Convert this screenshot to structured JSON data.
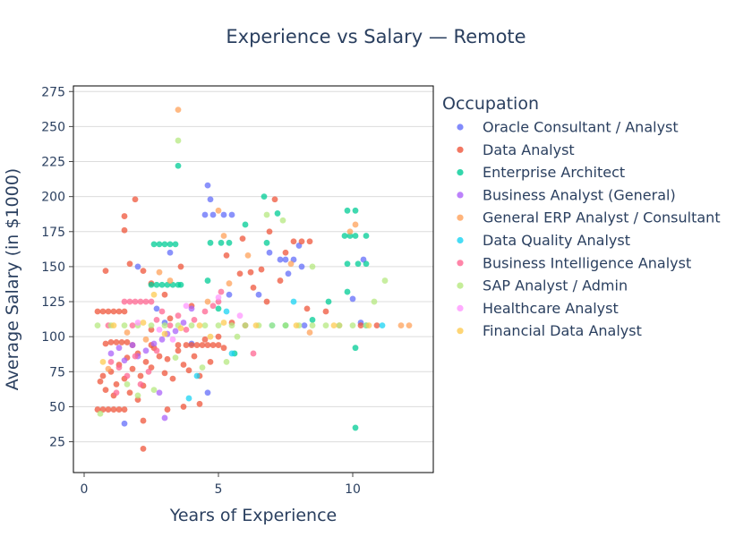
{
  "chart_data": {
    "type": "scatter",
    "title": "Experience vs Salary — Remote",
    "xlabel": "Years of Experience",
    "ylabel": "Average Salary (in $1000)",
    "xlim": [
      -0.4,
      13.0
    ],
    "ylim": [
      3,
      279
    ],
    "xticks": [
      0,
      5,
      10
    ],
    "yticks": [
      25,
      50,
      75,
      100,
      125,
      150,
      175,
      200,
      225,
      250,
      275
    ],
    "grid": "horizontal",
    "legend": {
      "title": "Occupation",
      "placement": "right"
    },
    "series": [
      {
        "name": "Oracle Consultant / Analyst",
        "color": "#636efa",
        "points": [
          [
            4.6,
            208
          ],
          [
            4.5,
            187
          ],
          [
            4.8,
            187
          ],
          [
            5.2,
            187
          ],
          [
            5.5,
            187
          ],
          [
            4.7,
            198
          ],
          [
            7.3,
            155
          ],
          [
            7.5,
            155
          ],
          [
            7.8,
            155
          ],
          [
            8.1,
            150
          ],
          [
            8.0,
            165
          ],
          [
            7.6,
            145
          ],
          [
            6.5,
            130
          ],
          [
            5.4,
            130
          ],
          [
            10.4,
            155
          ],
          [
            10.0,
            127
          ],
          [
            10.3,
            110
          ],
          [
            2.0,
            150
          ],
          [
            2.7,
            120
          ],
          [
            3.0,
            110
          ],
          [
            1.5,
            38
          ],
          [
            4.0,
            95
          ],
          [
            3.2,
            160
          ],
          [
            6.9,
            160
          ],
          [
            4.6,
            60
          ],
          [
            8.2,
            108
          ]
        ]
      },
      {
        "name": "Data Analyst",
        "color": "#ef553b",
        "points": [
          [
            0.5,
            118
          ],
          [
            0.7,
            118
          ],
          [
            0.9,
            118
          ],
          [
            1.1,
            118
          ],
          [
            1.3,
            118
          ],
          [
            1.5,
            118
          ],
          [
            0.5,
            48
          ],
          [
            0.7,
            48
          ],
          [
            0.9,
            48
          ],
          [
            1.1,
            48
          ],
          [
            1.3,
            48
          ],
          [
            1.5,
            48
          ],
          [
            1.0,
            96
          ],
          [
            1.2,
            96
          ],
          [
            1.4,
            96
          ],
          [
            1.6,
            96
          ],
          [
            0.8,
            95
          ],
          [
            1.8,
            94
          ],
          [
            2.5,
            94
          ],
          [
            3.5,
            94
          ],
          [
            3.8,
            94
          ],
          [
            4.0,
            94
          ],
          [
            4.2,
            94
          ],
          [
            4.4,
            94
          ],
          [
            4.6,
            94
          ],
          [
            4.8,
            94
          ],
          [
            5.0,
            94
          ],
          [
            0.6,
            68
          ],
          [
            0.7,
            72
          ],
          [
            0.8,
            62
          ],
          [
            1.0,
            75
          ],
          [
            1.1,
            58
          ],
          [
            1.2,
            66
          ],
          [
            1.3,
            80
          ],
          [
            1.5,
            70
          ],
          [
            1.6,
            85
          ],
          [
            1.7,
            60
          ],
          [
            1.8,
            77
          ],
          [
            2.0,
            88
          ],
          [
            2.1,
            72
          ],
          [
            2.2,
            65
          ],
          [
            2.3,
            82
          ],
          [
            2.5,
            78
          ],
          [
            2.6,
            92
          ],
          [
            2.8,
            86
          ],
          [
            3.0,
            74
          ],
          [
            3.1,
            84
          ],
          [
            3.3,
            70
          ],
          [
            3.5,
            90
          ],
          [
            3.7,
            80
          ],
          [
            3.9,
            76
          ],
          [
            4.1,
            86
          ],
          [
            4.3,
            72
          ],
          [
            4.5,
            98
          ],
          [
            4.7,
            82
          ],
          [
            5.0,
            100
          ],
          [
            5.2,
            92
          ],
          [
            5.5,
            110
          ],
          [
            1.5,
            186
          ],
          [
            1.5,
            176
          ],
          [
            1.9,
            198
          ],
          [
            1.7,
            152
          ],
          [
            2.2,
            147
          ],
          [
            2.5,
            138
          ],
          [
            3.0,
            130
          ],
          [
            3.6,
            150
          ],
          [
            5.3,
            158
          ],
          [
            5.8,
            145
          ],
          [
            6.3,
            135
          ],
          [
            6.6,
            148
          ],
          [
            6.9,
            175
          ],
          [
            7.1,
            198
          ],
          [
            7.5,
            160
          ],
          [
            7.8,
            168
          ],
          [
            8.1,
            168
          ],
          [
            8.4,
            168
          ],
          [
            7.3,
            140
          ],
          [
            8.3,
            120
          ],
          [
            9.0,
            118
          ],
          [
            10.3,
            108
          ],
          [
            10.9,
            108
          ],
          [
            0.8,
            147
          ],
          [
            2.2,
            20
          ],
          [
            2.0,
            55
          ],
          [
            2.2,
            40
          ],
          [
            3.1,
            48
          ],
          [
            3.7,
            50
          ],
          [
            4.3,
            52
          ],
          [
            2.5,
            105
          ],
          [
            3.2,
            113
          ],
          [
            4.0,
            122
          ],
          [
            6.8,
            125
          ],
          [
            5.9,
            170
          ],
          [
            6.0,
            108
          ],
          [
            6.2,
            146
          ]
        ]
      },
      {
        "name": "Enterprise Architect",
        "color": "#00cc96",
        "points": [
          [
            2.6,
            166
          ],
          [
            2.8,
            166
          ],
          [
            3.0,
            166
          ],
          [
            3.2,
            166
          ],
          [
            3.4,
            166
          ],
          [
            2.5,
            137
          ],
          [
            2.7,
            137
          ],
          [
            2.9,
            137
          ],
          [
            3.1,
            137
          ],
          [
            3.3,
            137
          ],
          [
            3.5,
            137
          ],
          [
            3.6,
            137
          ],
          [
            3.5,
            222
          ],
          [
            4.7,
            167
          ],
          [
            5.1,
            167
          ],
          [
            5.4,
            167
          ],
          [
            6.8,
            167
          ],
          [
            6.7,
            200
          ],
          [
            7.2,
            188
          ],
          [
            9.7,
            172
          ],
          [
            9.9,
            172
          ],
          [
            10.1,
            172
          ],
          [
            10.5,
            172
          ],
          [
            9.8,
            152
          ],
          [
            10.2,
            152
          ],
          [
            10.5,
            152
          ],
          [
            9.8,
            190
          ],
          [
            10.1,
            190
          ],
          [
            10.1,
            35
          ],
          [
            10.1,
            92
          ],
          [
            6.0,
            180
          ],
          [
            4.6,
            140
          ],
          [
            5.0,
            120
          ],
          [
            7.5,
            108
          ],
          [
            8.5,
            112
          ],
          [
            9.8,
            132
          ],
          [
            5.6,
            88
          ],
          [
            9.1,
            125
          ]
        ]
      },
      {
        "name": "Business Analyst (General)",
        "color": "#ab63fa",
        "points": [
          [
            1.0,
            88
          ],
          [
            1.3,
            92
          ],
          [
            1.5,
            83
          ],
          [
            1.8,
            94
          ],
          [
            2.0,
            86
          ],
          [
            2.3,
            90
          ],
          [
            2.6,
            95
          ],
          [
            2.9,
            98
          ],
          [
            3.1,
            102
          ],
          [
            3.4,
            104
          ],
          [
            3.0,
            42
          ],
          [
            2.8,
            60
          ],
          [
            3.7,
            110
          ],
          [
            4.0,
            120
          ]
        ]
      },
      {
        "name": "General ERP Analyst / Consultant",
        "color": "#ffa15a",
        "points": [
          [
            3.5,
            262
          ],
          [
            5.0,
            190
          ],
          [
            5.2,
            172
          ],
          [
            6.1,
            158
          ],
          [
            7.7,
            152
          ],
          [
            9.9,
            175
          ],
          [
            10.1,
            180
          ],
          [
            11.8,
            108
          ],
          [
            12.1,
            108
          ],
          [
            2.8,
            146
          ],
          [
            3.2,
            140
          ],
          [
            4.6,
            125
          ],
          [
            5.4,
            138
          ],
          [
            8.4,
            103
          ],
          [
            9.5,
            108
          ],
          [
            0.9,
            77
          ],
          [
            1.6,
            103
          ],
          [
            2.3,
            98
          ]
        ]
      },
      {
        "name": "Data Quality Analyst",
        "color": "#19d3f3",
        "points": [
          [
            3.9,
            56
          ],
          [
            4.2,
            72
          ],
          [
            5.5,
            88
          ],
          [
            7.0,
            108
          ],
          [
            10.5,
            108
          ],
          [
            11.1,
            108
          ],
          [
            7.8,
            125
          ],
          [
            5.3,
            118
          ]
        ]
      },
      {
        "name": "Business Intelligence Analyst",
        "color": "#ff6692",
        "points": [
          [
            1.5,
            125
          ],
          [
            1.7,
            125
          ],
          [
            1.9,
            125
          ],
          [
            2.1,
            125
          ],
          [
            2.3,
            125
          ],
          [
            2.5,
            125
          ],
          [
            1.0,
            82
          ],
          [
            1.3,
            78
          ],
          [
            1.6,
            72
          ],
          [
            1.9,
            86
          ],
          [
            2.1,
            66
          ],
          [
            2.4,
            75
          ],
          [
            2.7,
            112
          ],
          [
            2.9,
            118
          ],
          [
            3.2,
            108
          ],
          [
            3.5,
            115
          ],
          [
            3.8,
            105
          ],
          [
            4.1,
            112
          ],
          [
            4.5,
            118
          ],
          [
            4.8,
            122
          ],
          [
            5.0,
            125
          ],
          [
            5.1,
            132
          ],
          [
            6.3,
            88
          ],
          [
            1.2,
            60
          ],
          [
            2.7,
            90
          ],
          [
            0.9,
            108
          ],
          [
            1.8,
            108
          ]
        ]
      },
      {
        "name": "SAP Analyst / Admin",
        "color": "#b6e880",
        "points": [
          [
            0.5,
            108
          ],
          [
            1.0,
            108
          ],
          [
            1.5,
            108
          ],
          [
            2.0,
            108
          ],
          [
            2.5,
            108
          ],
          [
            3.0,
            108
          ],
          [
            3.5,
            108
          ],
          [
            4.0,
            108
          ],
          [
            4.5,
            108
          ],
          [
            5.0,
            108
          ],
          [
            5.5,
            108
          ],
          [
            6.0,
            108
          ],
          [
            6.5,
            108
          ],
          [
            7.0,
            108
          ],
          [
            7.5,
            108
          ],
          [
            8.0,
            108
          ],
          [
            8.5,
            108
          ],
          [
            9.0,
            108
          ],
          [
            9.5,
            108
          ],
          [
            10.0,
            108
          ],
          [
            10.5,
            108
          ],
          [
            3.5,
            240
          ],
          [
            6.8,
            187
          ],
          [
            7.4,
            183
          ],
          [
            10.8,
            125
          ],
          [
            11.2,
            140
          ],
          [
            8.5,
            150
          ],
          [
            2.0,
            58
          ],
          [
            2.6,
            62
          ],
          [
            0.6,
            45
          ],
          [
            4.4,
            78
          ],
          [
            5.3,
            82
          ],
          [
            5.7,
            100
          ],
          [
            3.4,
            85
          ],
          [
            1.6,
            66
          ]
        ]
      },
      {
        "name": "Healthcare Analyst",
        "color": "#ff97ff",
        "points": [
          [
            2.0,
            110
          ],
          [
            2.8,
            105
          ],
          [
            3.3,
            98
          ],
          [
            3.8,
            122
          ],
          [
            5.0,
            128
          ],
          [
            5.8,
            115
          ]
        ]
      },
      {
        "name": "Financial Data Analyst",
        "color": "#fecb52",
        "points": [
          [
            1.1,
            108
          ],
          [
            2.2,
            110
          ],
          [
            3.0,
            102
          ],
          [
            3.6,
            106
          ],
          [
            4.3,
            108
          ],
          [
            5.2,
            110
          ],
          [
            6.4,
            108
          ],
          [
            7.9,
            108
          ],
          [
            9.3,
            108
          ],
          [
            10.6,
            108
          ],
          [
            2.6,
            130
          ],
          [
            4.7,
            100
          ],
          [
            0.7,
            82
          ]
        ]
      }
    ]
  }
}
